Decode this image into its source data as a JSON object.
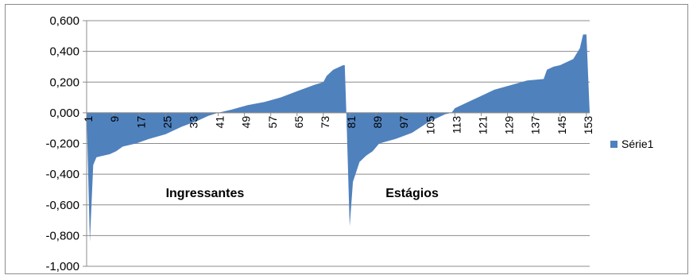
{
  "chart_data": {
    "type": "area",
    "title": "",
    "xlabel": "",
    "ylabel": "",
    "ylim": [
      -1.0,
      0.6
    ],
    "y_ticks": [
      "0,600",
      "0,400",
      "0,200",
      "0,000",
      "-0,200",
      "-0,400",
      "-0,600",
      "-0,800",
      "-1,000"
    ],
    "x_ticks": [
      "1",
      "9",
      "17",
      "25",
      "33",
      "41",
      "49",
      "57",
      "65",
      "73",
      "81",
      "89",
      "97",
      "105",
      "113",
      "121",
      "129",
      "137",
      "145",
      "153"
    ],
    "x_range": [
      1,
      154
    ],
    "grid": "horizontal",
    "legend_position": "right",
    "color": "#4f81bd",
    "annotations": [
      {
        "text": "Ingressantes",
        "x": 37
      },
      {
        "text": "Estágios",
        "x": 100
      }
    ],
    "series": [
      {
        "name": "Série1",
        "x": [
          1,
          2,
          3,
          4,
          6,
          8,
          10,
          12,
          16,
          20,
          25,
          30,
          35,
          38,
          41,
          45,
          50,
          55,
          60,
          65,
          70,
          73,
          74,
          76,
          79,
          79.5,
          80,
          81,
          82,
          84,
          86,
          88,
          90,
          95,
          100,
          105,
          110,
          112,
          113,
          115,
          120,
          125,
          130,
          135,
          140,
          141,
          143,
          145,
          147,
          149,
          151,
          152,
          153,
          154
        ],
        "values": [
          0.0,
          -0.84,
          -0.34,
          -0.29,
          -0.28,
          -0.27,
          -0.25,
          -0.22,
          -0.2,
          -0.17,
          -0.14,
          -0.09,
          -0.05,
          -0.02,
          0.0,
          0.02,
          0.05,
          0.07,
          0.1,
          0.14,
          0.18,
          0.2,
          0.24,
          0.28,
          0.31,
          0.31,
          0.0,
          -0.74,
          -0.45,
          -0.32,
          -0.28,
          -0.25,
          -0.2,
          -0.17,
          -0.13,
          -0.06,
          -0.01,
          0.0,
          0.03,
          0.05,
          0.1,
          0.15,
          0.18,
          0.21,
          0.22,
          0.28,
          0.3,
          0.31,
          0.33,
          0.35,
          0.42,
          0.51,
          0.51,
          0.0
        ]
      }
    ]
  }
}
